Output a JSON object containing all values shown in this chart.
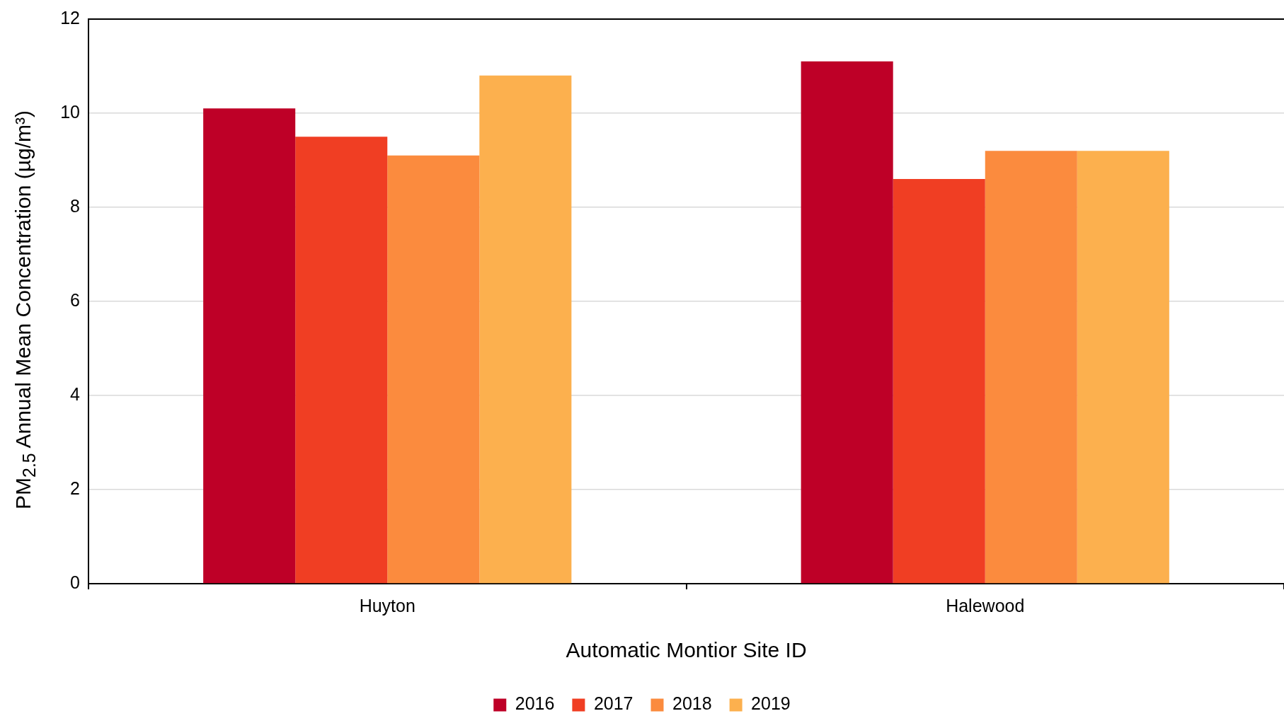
{
  "chart_data": {
    "type": "bar",
    "xlabel": "Automatic Montior Site ID",
    "ylabel": "PM$_{2.5}$ Annual Mean Concentration (µg/m³)",
    "categories": [
      "Huyton",
      "Halewood"
    ],
    "series": [
      {
        "name": "2016",
        "color": "#be0027",
        "values": [
          10.1,
          11.1
        ]
      },
      {
        "name": "2017",
        "color": "#f03e23",
        "values": [
          9.5,
          8.6
        ]
      },
      {
        "name": "2018",
        "color": "#fb8b3e",
        "values": [
          9.1,
          9.2
        ]
      },
      {
        "name": "2019",
        "color": "#fcb04e",
        "values": [
          10.8,
          9.2
        ]
      }
    ],
    "ylim": [
      0,
      12
    ],
    "yticks": [
      0,
      2,
      4,
      6,
      8,
      10,
      12
    ],
    "grid": "y",
    "legend": "bottom"
  }
}
